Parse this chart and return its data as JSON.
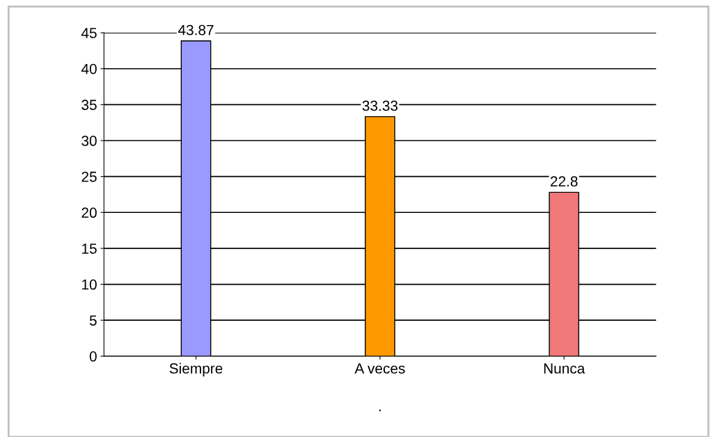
{
  "chart_data": {
    "type": "bar",
    "categories": [
      "Siempre",
      "A veces",
      "Nunca"
    ],
    "values": [
      43.87,
      33.33,
      22.8
    ],
    "colors": [
      "#9999ff",
      "#ff9900",
      "#f07878"
    ],
    "data_labels": true,
    "xlabel": ".",
    "ylim": [
      0,
      45
    ],
    "yticks": [
      0,
      5,
      10,
      15,
      20,
      25,
      30,
      35,
      40,
      45
    ],
    "grid": "y"
  }
}
